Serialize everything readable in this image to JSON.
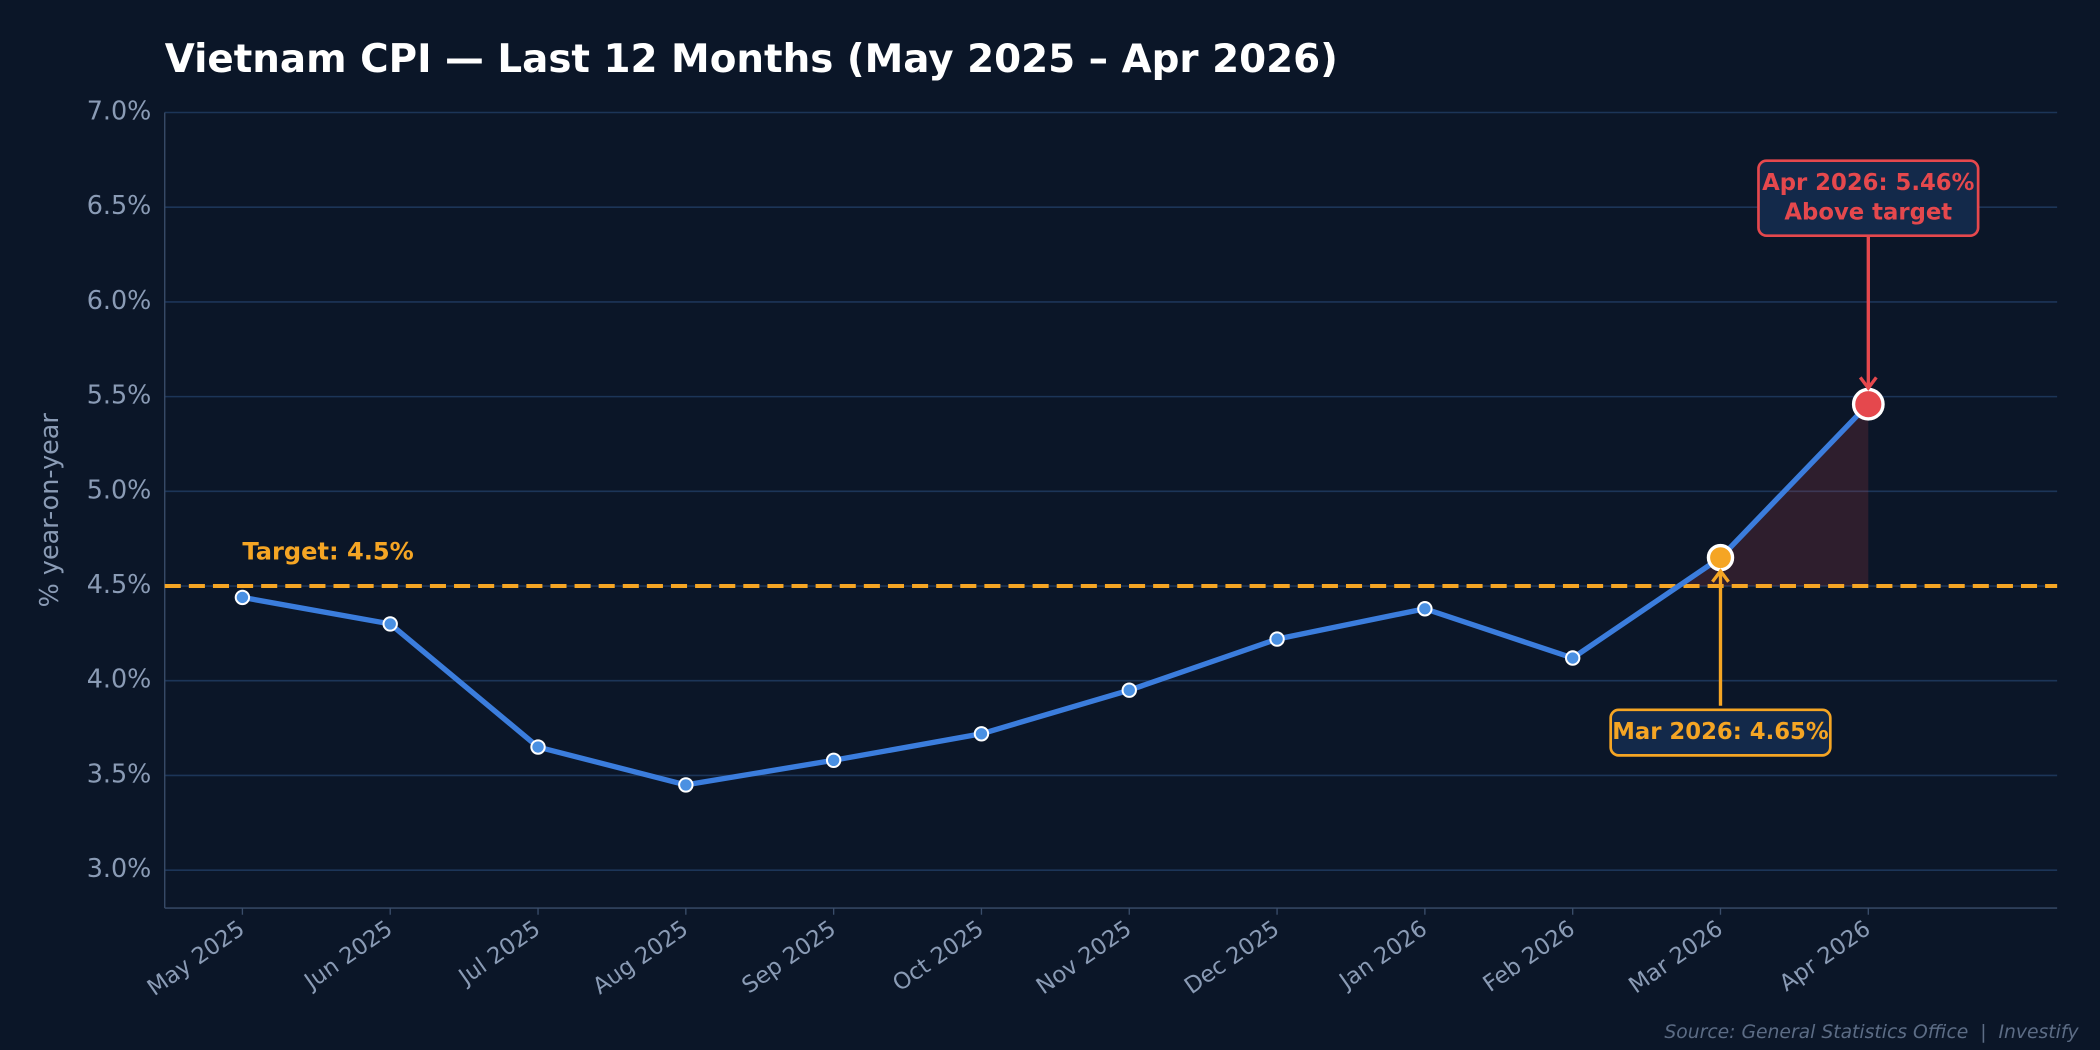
{
  "chart_data": {
    "type": "line",
    "title": "Vietnam CPI — Last 12 Months (May 2025 – Apr 2026)",
    "y_label": "% year-on-year",
    "categories": [
      "May 2025",
      "Jun 2025",
      "Jul 2025",
      "Aug 2025",
      "Sep 2025",
      "Oct 2025",
      "Nov 2025",
      "Dec 2025",
      "Jan 2026",
      "Feb 2026",
      "Mar 2026",
      "Apr 2026"
    ],
    "series": [
      {
        "name": "CPI",
        "color": "#3b7ddd",
        "values": [
          4.44,
          4.3,
          3.65,
          3.45,
          3.58,
          3.72,
          3.95,
          4.22,
          4.38,
          4.12,
          4.65,
          5.46
        ]
      }
    ],
    "ylim": [
      2.8,
      7.0
    ],
    "yticks": [
      {
        "value": 3.0,
        "label": "3.0%"
      },
      {
        "value": 3.5,
        "label": "3.5%"
      },
      {
        "value": 4.0,
        "label": "4.0%"
      },
      {
        "value": 4.5,
        "label": "4.5%"
      },
      {
        "value": 5.0,
        "label": "5.0%"
      },
      {
        "value": 5.5,
        "label": "5.5%"
      },
      {
        "value": 6.0,
        "label": "6.0%"
      },
      {
        "value": 6.5,
        "label": "6.5%"
      },
      {
        "value": 7.0,
        "label": "7.0%"
      }
    ],
    "grid": true,
    "target": {
      "value": 4.5,
      "label": "Target: 4.5%",
      "color": "#f5a524"
    },
    "annotations": [
      {
        "lines": [
          "Mar 2026: 4.65%"
        ],
        "color": "#f5a524"
      },
      {
        "lines": [
          "Apr 2026: 5.46%",
          "Above target"
        ],
        "color": "#e5484d"
      }
    ],
    "source": "Source: General Statistics Office  |  Investify"
  }
}
